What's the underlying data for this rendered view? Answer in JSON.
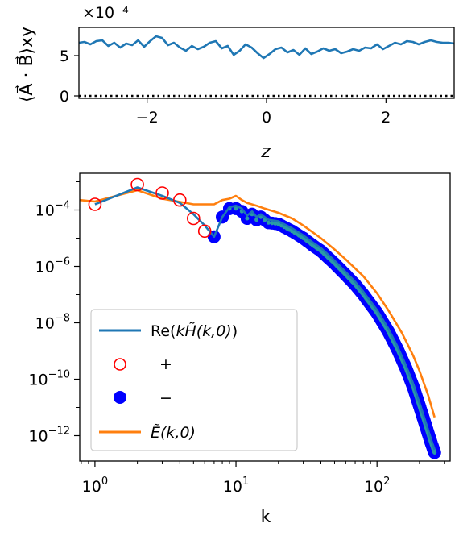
{
  "colors": {
    "blue_line": "#1f77b4",
    "orange_line": "#ff7f0e",
    "red_marker": "#ff0000",
    "blue_marker": "#0000ff",
    "teal_marker": "#2a9aa6"
  },
  "chart_data": [
    {
      "id": "top",
      "type": "line",
      "xlabel": "z",
      "ylabel": "⟨A⃗ · B⃗⟩xy",
      "scale_label": "×10⁻⁴",
      "xlim": [
        -3.14159,
        3.14159
      ],
      "ylim": [
        -0.3,
        8.5
      ],
      "xticks": [
        -2,
        0,
        2
      ],
      "xtick_labels": [
        "−2",
        "0",
        "2"
      ],
      "yticks": [
        0,
        5
      ],
      "ytick_labels": [
        "0",
        "5"
      ],
      "series": [
        {
          "style": "solid",
          "x": [
            -3.14,
            -3.05,
            -2.95,
            -2.85,
            -2.75,
            -2.65,
            -2.55,
            -2.45,
            -2.35,
            -2.25,
            -2.15,
            -2.05,
            -1.95,
            -1.85,
            -1.75,
            -1.65,
            -1.55,
            -1.45,
            -1.35,
            -1.25,
            -1.15,
            -1.05,
            -0.95,
            -0.85,
            -0.75,
            -0.65,
            -0.55,
            -0.45,
            -0.35,
            -0.25,
            -0.15,
            -0.05,
            0.05,
            0.15,
            0.25,
            0.35,
            0.45,
            0.55,
            0.65,
            0.75,
            0.85,
            0.95,
            1.05,
            1.15,
            1.25,
            1.35,
            1.45,
            1.55,
            1.65,
            1.75,
            1.85,
            1.95,
            2.05,
            2.15,
            2.25,
            2.35,
            2.45,
            2.55,
            2.65,
            2.75,
            2.85,
            2.95,
            3.05,
            3.14
          ],
          "y": [
            6.6,
            6.7,
            6.4,
            6.8,
            6.9,
            6.2,
            6.6,
            6.0,
            6.5,
            6.3,
            6.9,
            6.1,
            6.8,
            7.4,
            7.2,
            6.3,
            6.6,
            6.0,
            5.6,
            6.2,
            5.8,
            6.1,
            6.6,
            6.8,
            5.9,
            6.2,
            5.1,
            5.6,
            6.4,
            6.0,
            5.3,
            4.7,
            5.2,
            5.8,
            6.0,
            5.4,
            5.7,
            5.1,
            5.9,
            5.2,
            5.5,
            5.9,
            5.6,
            5.8,
            5.3,
            5.5,
            5.8,
            5.6,
            6.0,
            5.9,
            6.4,
            5.8,
            6.2,
            6.6,
            6.4,
            6.8,
            6.7,
            6.4,
            6.7,
            6.9,
            6.7,
            6.6,
            6.6,
            6.5
          ]
        },
        {
          "style": "dotted",
          "x": [
            -3.14159,
            3.14159
          ],
          "y": [
            0,
            0
          ]
        }
      ]
    },
    {
      "id": "bottom",
      "type": "line",
      "xlabel": "k",
      "ylabel": "",
      "xscale": "log",
      "yscale": "log",
      "xlim": [
        0.78,
        330
      ],
      "ylim_exp": [
        -12.9,
        -2.7
      ],
      "xticks": [
        1,
        10,
        100
      ],
      "xtick_labels": [
        {
          "base": "10",
          "exp": "0"
        },
        {
          "base": "10",
          "exp": "1"
        },
        {
          "base": "10",
          "exp": "2"
        }
      ],
      "yticks_exp": [
        -4,
        -6,
        -8,
        -10,
        -12
      ],
      "ytick_labels": [
        {
          "base": "10",
          "exp": "−4"
        },
        {
          "base": "10",
          "exp": "−6"
        },
        {
          "base": "10",
          "exp": "−8"
        },
        {
          "base": "10",
          "exp": "−10"
        },
        {
          "base": "10",
          "exp": "−12"
        }
      ],
      "legend": {
        "position": "lower-left",
        "items": [
          {
            "kind": "line",
            "color": "blue_line",
            "label_parts": [
              "Re(",
              "kH̃(k,0)",
              ")"
            ]
          },
          {
            "kind": "open-circle",
            "color": "red_marker",
            "label_parts": [
              "+"
            ]
          },
          {
            "kind": "filled-circle",
            "color": "blue_marker",
            "label_parts": [
              "−"
            ]
          },
          {
            "kind": "line",
            "color": "orange_line",
            "label_parts": [
              "Ẽ(k,0)"
            ]
          }
        ]
      },
      "series": [
        {
          "name": "Re(kH̃(k,0))",
          "color": "blue_line",
          "k": [
            1,
            2,
            3,
            4,
            5,
            6,
            7,
            8,
            9,
            10,
            11,
            12,
            13,
            14,
            15,
            17,
            20,
            25,
            30,
            35,
            40,
            50,
            60,
            70,
            80,
            100,
            120,
            140,
            160,
            180,
            200,
            220,
            240,
            256
          ],
          "logy": [
            -3.8,
            -3.2,
            -3.5,
            -3.75,
            -4.15,
            -4.55,
            -4.95,
            -4.25,
            -3.9,
            -3.85,
            -3.95,
            -4.2,
            -4.05,
            -4.25,
            -4.15,
            -4.35,
            -4.4,
            -4.65,
            -4.9,
            -5.15,
            -5.35,
            -5.8,
            -6.2,
            -6.55,
            -6.9,
            -7.55,
            -8.2,
            -8.85,
            -9.5,
            -10.15,
            -10.85,
            -11.5,
            -12.1,
            -12.5
          ]
        },
        {
          "name": "Ẽ(k,0)",
          "color": "orange_line",
          "k": [
            0.78,
            1,
            2,
            3,
            5,
            7,
            8,
            9,
            10,
            11,
            12,
            14,
            16,
            20,
            25,
            30,
            40,
            50,
            60,
            80,
            100,
            120,
            150,
            180,
            200,
            230,
            256
          ],
          "logy": [
            -3.65,
            -3.7,
            -3.3,
            -3.6,
            -3.8,
            -3.8,
            -3.65,
            -3.6,
            -3.5,
            -3.65,
            -3.75,
            -3.85,
            -3.95,
            -4.1,
            -4.3,
            -4.55,
            -5.0,
            -5.4,
            -5.75,
            -6.35,
            -6.95,
            -7.55,
            -8.35,
            -9.15,
            -9.7,
            -10.55,
            -11.35
          ]
        },
        {
          "name": "+",
          "marker": "open-circle",
          "color": "red_marker",
          "k": [
            1,
            2,
            3,
            4,
            5,
            6
          ],
          "logy": [
            -3.8,
            -3.1,
            -3.4,
            -3.65,
            -4.3,
            -4.75
          ]
        },
        {
          "name": "−",
          "marker": "filled-circle",
          "color": "blue_marker",
          "k": [
            7,
            8,
            9,
            10,
            11,
            12,
            13,
            14,
            15,
            17,
            20,
            25,
            30,
            35,
            40,
            50,
            60,
            70,
            80,
            100,
            120,
            140,
            160,
            180,
            200,
            220,
            240,
            256
          ],
          "logy": [
            -4.95,
            -4.25,
            -3.95,
            -3.95,
            -4.05,
            -4.3,
            -4.15,
            -4.35,
            -4.25,
            -4.45,
            -4.5,
            -4.75,
            -5.0,
            -5.25,
            -5.45,
            -5.9,
            -6.3,
            -6.65,
            -7.0,
            -7.65,
            -8.3,
            -8.95,
            -9.6,
            -10.25,
            -10.95,
            -11.6,
            -12.2,
            -12.6
          ]
        }
      ]
    }
  ]
}
